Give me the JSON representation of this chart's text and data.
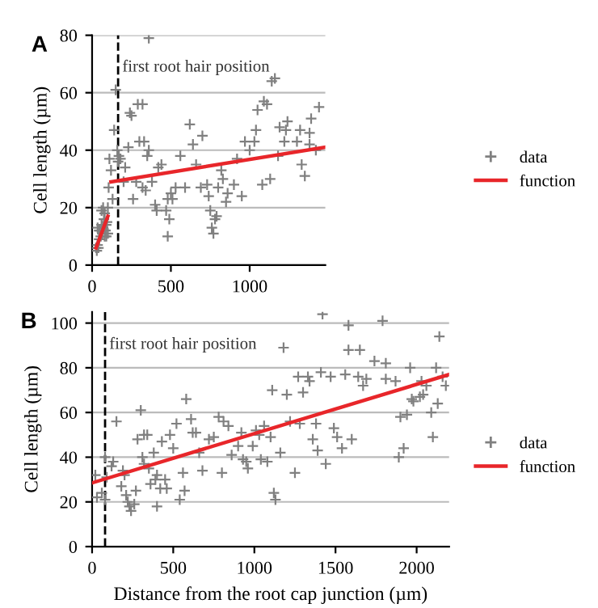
{
  "chart_data": [
    {
      "type": "scatter",
      "annotations": [
        "A"
      ],
      "ylabel": "Cell length (µm)",
      "xlim": [
        0,
        1480
      ],
      "xticks": [
        0,
        500,
        1000
      ],
      "ylim": [
        0,
        80
      ],
      "yticks": [
        0,
        20,
        40,
        60,
        80
      ],
      "grid": "y",
      "legend": "right",
      "marker": "cross",
      "ref_lines": [
        {
          "axis": "x",
          "value": 165,
          "label": "first root hair position",
          "line_style": "dashed",
          "color": "#000000"
        }
      ],
      "series": [
        {
          "name": "data",
          "color": "#808080",
          "x": [
            25,
            30,
            35,
            40,
            45,
            50,
            55,
            60,
            65,
            70,
            75,
            80,
            85,
            90,
            95,
            100,
            60,
            70,
            80,
            90,
            100,
            45,
            35,
            105,
            110,
            120,
            130,
            140,
            150,
            160,
            165,
            170,
            180,
            200,
            210,
            230,
            240,
            250,
            260,
            280,
            290,
            300,
            320,
            320,
            330,
            340,
            350,
            360,
            360,
            380,
            400,
            410,
            420,
            440,
            470,
            480,
            480,
            490,
            500,
            510,
            530,
            560,
            590,
            620,
            640,
            660,
            690,
            700,
            730,
            740,
            750,
            760,
            770,
            780,
            790,
            800,
            820,
            830,
            850,
            860,
            900,
            920,
            950,
            970,
            1000,
            1030,
            1040,
            1050,
            1080,
            1090,
            1110,
            1130,
            1140,
            1160,
            1180,
            1190,
            1220,
            1230,
            1240,
            1300,
            1320,
            1330,
            1350,
            1380,
            1390,
            1420,
            1440,
            1380
          ],
          "values": [
            6,
            5,
            7,
            6,
            9,
            12,
            10,
            14,
            11,
            13,
            16,
            18,
            12,
            10,
            15,
            20,
            19,
            20,
            10,
            14,
            11,
            12,
            13,
            27,
            37,
            33,
            23,
            47,
            61,
            40,
            36,
            38,
            37,
            29,
            34,
            41,
            53,
            52,
            23,
            29,
            56,
            43,
            56,
            27,
            43,
            26,
            38,
            79,
            40,
            29,
            21,
            19,
            34,
            35,
            19,
            23,
            10,
            16,
            25,
            23,
            27,
            38,
            27,
            49,
            42,
            35,
            27,
            45,
            28,
            24,
            19,
            13,
            11,
            16,
            17,
            27,
            33,
            30,
            22,
            25,
            28,
            37,
            24,
            43,
            40,
            43,
            47,
            54,
            28,
            57,
            56,
            30,
            64,
            65,
            38,
            48,
            43,
            47,
            50,
            43,
            47,
            35,
            31,
            46,
            51,
            40,
            55,
            42
          ]
        },
        {
          "name": "function",
          "color": "#e8262a",
          "type": "line",
          "marker": "none",
          "line_style": "solid",
          "x": [
            25,
            100,
            110,
            120,
            1480
          ],
          "values": [
            6,
            17,
            null,
            29,
            41
          ]
        }
      ]
    },
    {
      "type": "scatter",
      "annotations": [
        "B"
      ],
      "xlabel": "Distance from the root cap junction (µm)",
      "ylabel": "Cell length (µm)",
      "xlim": [
        0,
        2200
      ],
      "xticks": [
        0,
        500,
        1000,
        1500,
        2000
      ],
      "ylim": [
        0,
        105
      ],
      "yticks": [
        0,
        20,
        40,
        60,
        80,
        100
      ],
      "grid": "y",
      "legend": "right",
      "marker": "cross",
      "ref_lines": [
        {
          "axis": "x",
          "value": 80,
          "label": "first root hair position",
          "line_style": "dashed",
          "color": "#000000"
        }
      ],
      "series": [
        {
          "name": "data",
          "color": "#808080",
          "x": [
            20,
            30,
            60,
            80,
            80,
            90,
            120,
            130,
            150,
            180,
            190,
            200,
            210,
            220,
            230,
            240,
            260,
            270,
            280,
            300,
            310,
            320,
            320,
            340,
            350,
            360,
            380,
            390,
            400,
            400,
            420,
            430,
            450,
            460,
            480,
            500,
            520,
            540,
            560,
            570,
            580,
            610,
            620,
            640,
            660,
            680,
            720,
            750,
            780,
            800,
            810,
            840,
            860,
            900,
            920,
            930,
            950,
            960,
            990,
            1010,
            1030,
            1040,
            1060,
            1080,
            1100,
            1110,
            1120,
            1130,
            1160,
            1180,
            1200,
            1220,
            1250,
            1270,
            1280,
            1300,
            1330,
            1340,
            1360,
            1380,
            1390,
            1410,
            1420,
            1440,
            1470,
            1490,
            1510,
            1540,
            1560,
            1580,
            1580,
            1600,
            1640,
            1650,
            1670,
            1690,
            1740,
            1790,
            1810,
            1810,
            1870,
            1890,
            1900,
            1920,
            1940,
            1960,
            1970,
            1980,
            2020,
            2030,
            2040,
            2060,
            2090,
            2100,
            2120,
            2130,
            2140,
            2160,
            2180
          ],
          "values": [
            32,
            22,
            24,
            21,
            40,
            31,
            36,
            38,
            56,
            27,
            34,
            32,
            23,
            20,
            18,
            16,
            19,
            25,
            48,
            61,
            40,
            37,
            50,
            50,
            35,
            28,
            42,
            30,
            32,
            18,
            26,
            47,
            30,
            26,
            50,
            44,
            55,
            21,
            33,
            25,
            66,
            57,
            51,
            51,
            42,
            34,
            48,
            49,
            58,
            33,
            56,
            54,
            41,
            45,
            51,
            39,
            38,
            35,
            45,
            52,
            50,
            39,
            54,
            38,
            49,
            70,
            24,
            21,
            42,
            89,
            68,
            56,
            33,
            76,
            55,
            69,
            76,
            74,
            48,
            55,
            43,
            78,
            104,
            37,
            76,
            53,
            49,
            44,
            77,
            99,
            88,
            48,
            76,
            88,
            72,
            75,
            83,
            101,
            75,
            82,
            74,
            40,
            58,
            44,
            59,
            80,
            66,
            65,
            67,
            74,
            68,
            72,
            60,
            49,
            80,
            64,
            94,
            76,
            72
          ]
        },
        {
          "name": "function",
          "color": "#e8262a",
          "type": "line",
          "marker": "none",
          "line_style": "solid",
          "x": [
            0,
            2200
          ],
          "values": [
            28.5,
            77
          ]
        }
      ]
    }
  ]
}
